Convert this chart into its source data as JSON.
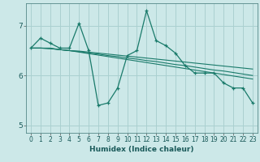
{
  "title": "",
  "xlabel": "Humidex (Indice chaleur)",
  "background_color": "#cce8e8",
  "grid_color": "#aad0d0",
  "line_color": "#197a6a",
  "xlim": [
    -0.5,
    23.5
  ],
  "ylim": [
    4.85,
    7.45
  ],
  "yticks": [
    5,
    6,
    7
  ],
  "xticks": [
    0,
    1,
    2,
    3,
    4,
    5,
    6,
    7,
    8,
    9,
    10,
    11,
    12,
    13,
    14,
    15,
    16,
    17,
    18,
    19,
    20,
    21,
    22,
    23
  ],
  "series": [
    [
      6.55,
      6.75,
      6.65,
      6.55,
      6.55,
      7.05,
      6.5,
      5.4,
      5.45,
      5.75,
      6.4,
      6.5,
      7.3,
      6.7,
      6.6,
      6.45,
      6.2,
      6.05,
      6.05,
      6.05,
      5.85,
      5.75,
      5.75,
      5.45
    ],
    [
      6.55,
      6.55,
      6.55,
      6.52,
      6.5,
      6.47,
      6.44,
      6.41,
      6.38,
      6.35,
      6.32,
      6.29,
      6.26,
      6.23,
      6.2,
      6.17,
      6.14,
      6.11,
      6.08,
      6.05,
      6.02,
      5.99,
      5.96,
      5.93
    ],
    [
      6.55,
      6.55,
      6.54,
      6.52,
      6.5,
      6.48,
      6.45,
      6.43,
      6.4,
      6.38,
      6.35,
      6.33,
      6.3,
      6.28,
      6.25,
      6.22,
      6.2,
      6.17,
      6.14,
      6.11,
      6.09,
      6.06,
      6.03,
      6.0
    ],
    [
      6.55,
      6.55,
      6.54,
      6.52,
      6.5,
      6.49,
      6.47,
      6.45,
      6.43,
      6.41,
      6.39,
      6.37,
      6.35,
      6.33,
      6.31,
      6.29,
      6.27,
      6.25,
      6.23,
      6.21,
      6.19,
      6.17,
      6.15,
      6.13
    ]
  ]
}
